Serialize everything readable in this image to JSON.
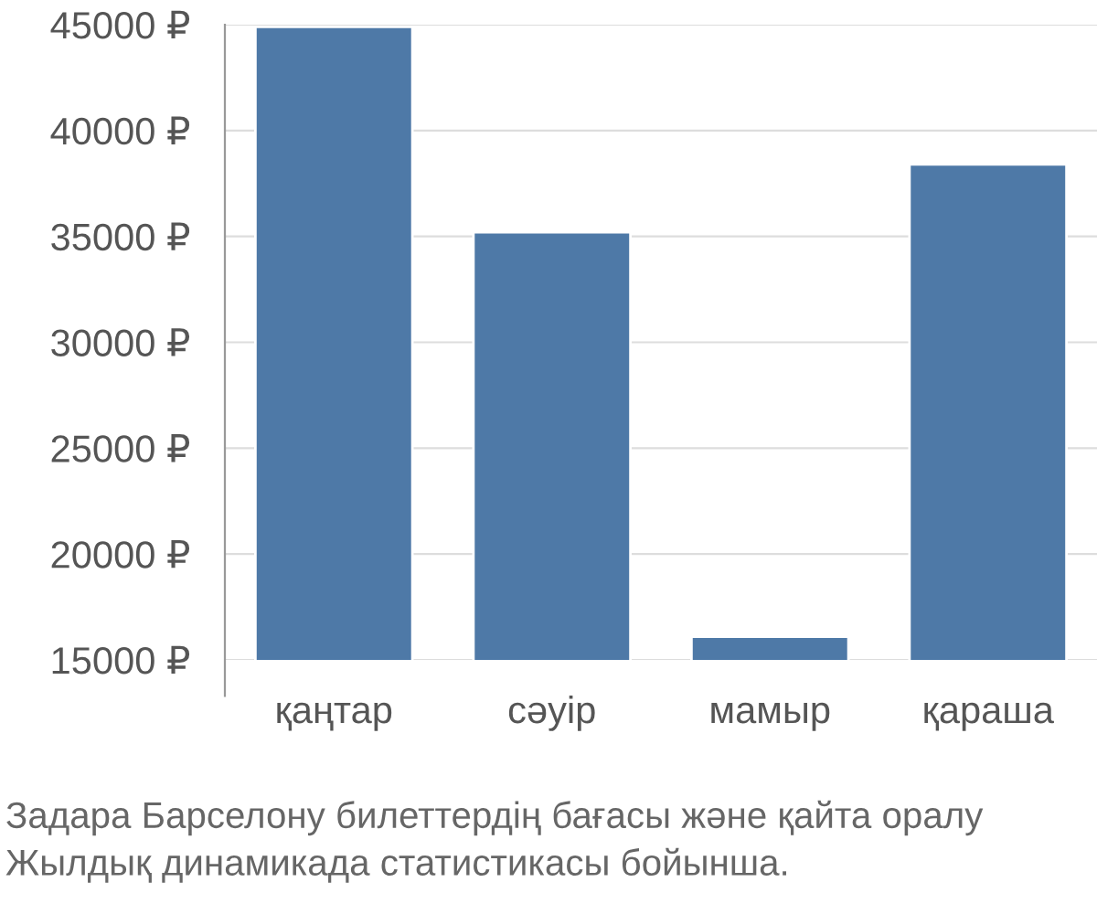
{
  "chart_data": {
    "type": "bar",
    "categories": [
      "қаңтар",
      "сәуір",
      "мамыр",
      "қараша"
    ],
    "values": [
      44900,
      35200,
      16100,
      38400
    ],
    "color": "#4e79a7",
    "ylim": [
      15000,
      45000
    ],
    "yticks": [
      {
        "value": 15000,
        "label": "15000 ₽"
      },
      {
        "value": 20000,
        "label": "20000 ₽"
      },
      {
        "value": 25000,
        "label": "25000 ₽"
      },
      {
        "value": 30000,
        "label": "30000 ₽"
      },
      {
        "value": 35000,
        "label": "35000 ₽"
      },
      {
        "value": 40000,
        "label": "40000 ₽"
      },
      {
        "value": 45000,
        "label": "45000 ₽"
      }
    ],
    "grid": "y",
    "annotations": [
      "Задара Барселону билеттердің бағасы және қайта оралу",
      "Жылдық динамикада статистикасы бойынша."
    ]
  }
}
